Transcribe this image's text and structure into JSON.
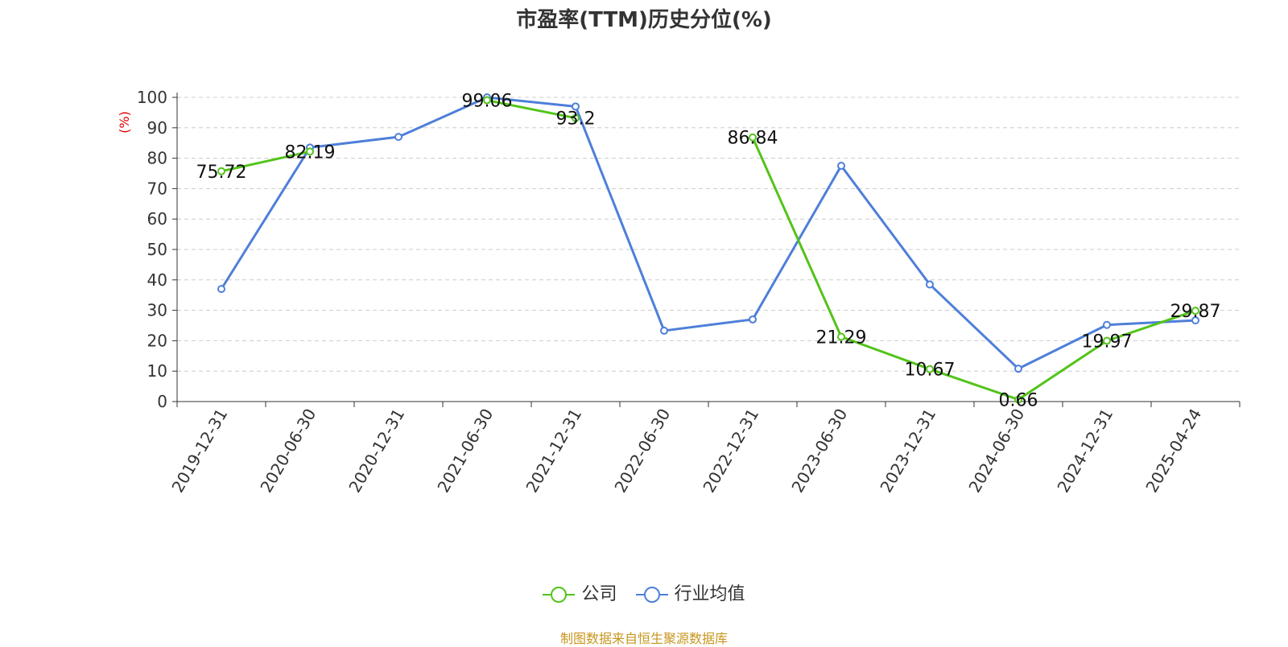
{
  "title": "市盈率(TTM)历史分位(%)",
  "source_note": "制图数据来自恒生聚源数据库",
  "colors": {
    "company": "#52c41a",
    "industry": "#4e7fd9",
    "ylabel": "#e00000"
  },
  "chart_data": {
    "type": "line",
    "title": "市盈率(TTM)历史分位(%)",
    "ylabel": "(%)",
    "xlabel": "",
    "ylim": [
      0,
      100
    ],
    "yticks": [
      0,
      10,
      20,
      30,
      40,
      50,
      60,
      70,
      80,
      90,
      100
    ],
    "grid": true,
    "legend_position": "bottom-center",
    "categories": [
      "2019-12-31",
      "2020-06-30",
      "2020-12-31",
      "2021-06-30",
      "2021-12-31",
      "2022-06-30",
      "2022-12-31",
      "2023-06-30",
      "2023-12-31",
      "2024-06-30",
      "2024-12-31",
      "2025-04-24"
    ],
    "series": [
      {
        "name": "公司",
        "values": [
          75.72,
          82.19,
          null,
          99.06,
          93.2,
          null,
          86.84,
          21.29,
          10.67,
          0.66,
          19.97,
          29.87
        ],
        "labels": [
          "75.72",
          "82.19",
          null,
          "99.06",
          "93.2",
          null,
          "86.84",
          "21.29",
          "10.67",
          "0.66",
          "19.97",
          "29.87"
        ]
      },
      {
        "name": "行业均值",
        "values": [
          37,
          83.5,
          87,
          100,
          97,
          23.3,
          27,
          77.5,
          38.5,
          10.8,
          25.2,
          26.7
        ]
      }
    ]
  }
}
